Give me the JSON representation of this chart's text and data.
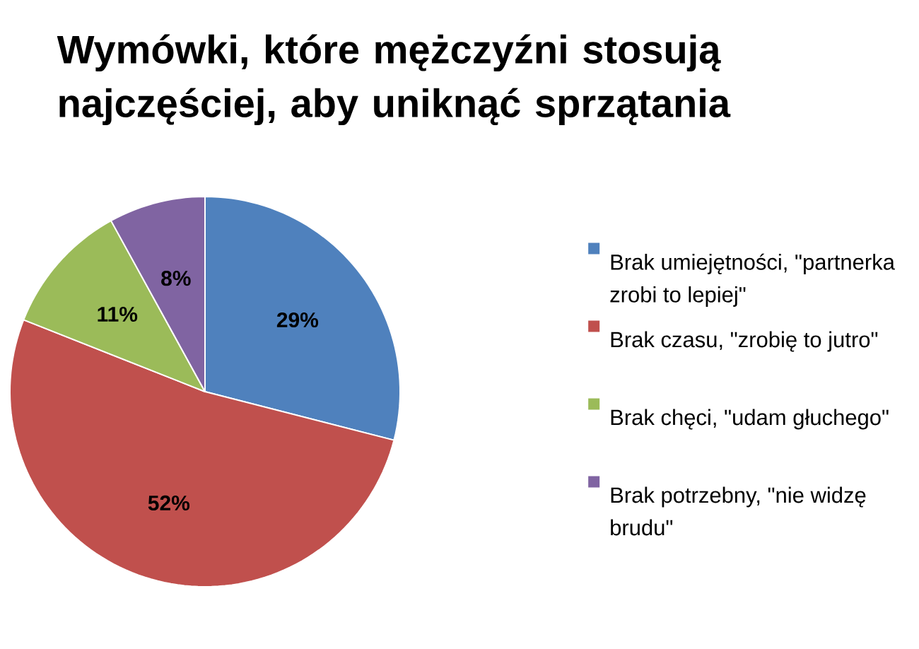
{
  "chart_data": {
    "type": "pie",
    "title": "Wymówki, które mężczyźni stosują najczęściej, aby uniknąć sprzątania",
    "categories": [
      "Brak umiejętności, \"partnerka zrobi to lepiej\"",
      "Brak czasu, \"zrobię to jutro\"",
      "Brak chęci, \"udam głuchego\"",
      "Brak potrzebny, \"nie widzę brudu\""
    ],
    "values": [
      29,
      52,
      11,
      8
    ],
    "colors": [
      "#4f81bd",
      "#c0504d",
      "#9bbb59",
      "#8064a2"
    ],
    "value_labels": [
      "29%",
      "52%",
      "11%",
      "8%"
    ],
    "legend": "right"
  }
}
